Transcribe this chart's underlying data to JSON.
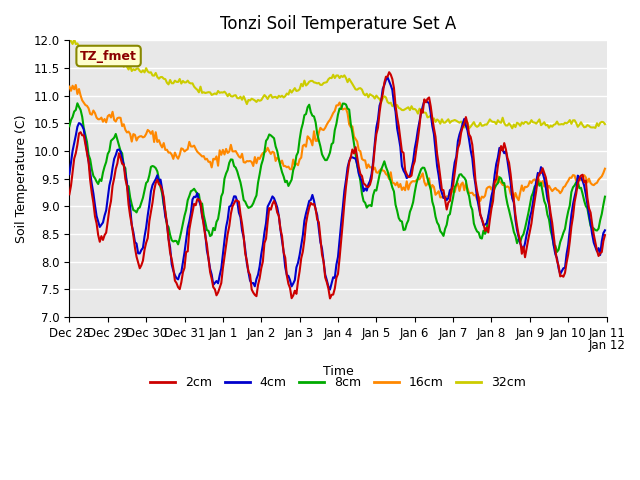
{
  "title": "Tonzi Soil Temperature Set A",
  "xlabel": "Time",
  "ylabel": "Soil Temperature (C)",
  "ylim": [
    7.0,
    12.0
  ],
  "yticks": [
    7.0,
    7.5,
    8.0,
    8.5,
    9.0,
    9.5,
    10.0,
    10.5,
    11.0,
    11.5,
    12.0
  ],
  "background_color": "#e8e8e8",
  "grid_color": "#ffffff",
  "legend_label": "TZ_fmet",
  "series_labels": [
    "2cm",
    "4cm",
    "8cm",
    "16cm",
    "32cm"
  ],
  "series_colors": [
    "#cc0000",
    "#0000cc",
    "#00aa00",
    "#ff8800",
    "#cccc00"
  ],
  "n_points": 336,
  "xtick_positions": [
    0,
    24,
    48,
    72,
    96,
    120,
    144,
    168,
    192,
    216,
    240,
    264,
    288,
    312,
    336
  ],
  "xtick_labels": [
    "Dec 28",
    "Dec 29",
    "Dec 30",
    "Dec 31",
    "Jan 1",
    "Jan 2",
    "Jan 3",
    "Jan 4",
    "Jan 5",
    "Jan 6",
    "Jan 7",
    "Jan 8",
    "Jan 9",
    "Jan 10",
    "Jan 11"
  ]
}
